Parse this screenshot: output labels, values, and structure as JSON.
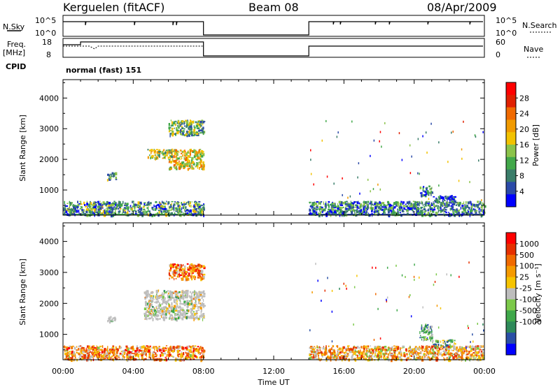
{
  "header": {
    "station": "Kerguelen (fitACF)",
    "beam": "Beam 08",
    "date": "08/Apr/2009"
  },
  "top_panels": {
    "nsky_label": "N.Sky",
    "nsky_ticks": [
      "10^5",
      "10^0"
    ],
    "nsearch_label": "N.Search",
    "nsearch_ticks": [
      "10^5",
      "10^0"
    ],
    "freq_label": "Freq.",
    "freq_unit": "[MHz]",
    "freq_ticks": [
      "18",
      "8"
    ],
    "nave_label": "Nave",
    "nave_ticks": [
      "60",
      "0"
    ],
    "cpid_label": "CPID",
    "cpid_value": "normal (fast) 151"
  },
  "colors": {
    "power_scale": [
      "#0000ff",
      "#2b4aa8",
      "#3a7d6a",
      "#42a84a",
      "#8bc34a",
      "#f2c200",
      "#f09a00",
      "#f06a00",
      "#e02000",
      "#ff0000"
    ],
    "velocity_scale": [
      "#0000ff",
      "#2a4fa6",
      "#2e8a5a",
      "#3fa84a",
      "#7cc94a",
      "#bdbdbd",
      "#f6c400",
      "#f59a00",
      "#f06a00",
      "#e63000",
      "#ff0000"
    ],
    "ground_scatter": "#bdbdbd"
  },
  "chart_data": [
    {
      "type": "heatmap",
      "name": "power",
      "ylabel": "Slant Range [km]",
      "yticks": [
        "1000",
        "2000",
        "3000",
        "4000"
      ],
      "ylim": [
        180,
        4600
      ],
      "xlim": [
        0,
        24
      ],
      "colorbar_label": "Power [dB]",
      "colorbar_ticks": [
        "4",
        "8",
        "12",
        "16",
        "20",
        "24",
        "28"
      ],
      "colorbar_range": [
        0,
        32
      ],
      "gaps": [
        [
          8,
          14
        ]
      ],
      "regions": [
        {
          "x0": 6.0,
          "x1": 8.0,
          "y0": 1700,
          "y1": 2350,
          "level": 0.55
        },
        {
          "x0": 4.8,
          "x1": 6.2,
          "y0": 2050,
          "y1": 2350,
          "level": 0.45
        },
        {
          "x0": 6.0,
          "x1": 8.0,
          "y0": 2800,
          "y1": 3300,
          "level": 0.35
        },
        {
          "x0": 2.5,
          "x1": 3.0,
          "y0": 1350,
          "y1": 1600,
          "level": 0.3
        },
        {
          "x0": 20.3,
          "x1": 21.0,
          "y0": 850,
          "y1": 1150,
          "level": 0.25
        },
        {
          "x0": 21.0,
          "x1": 22.3,
          "y0": 600,
          "y1": 850,
          "level": 0.2
        },
        {
          "x0": 0.0,
          "x1": 8.0,
          "y0": 200,
          "y1": 650,
          "level": 0.3
        },
        {
          "x0": 14.0,
          "x1": 24.0,
          "y0": 200,
          "y1": 650,
          "level": 0.25
        }
      ]
    },
    {
      "type": "heatmap",
      "name": "velocity",
      "ylabel": "Slant Range [km]",
      "yticks": [
        "1000",
        "2000",
        "3000",
        "4000"
      ],
      "ylim": [
        180,
        4600
      ],
      "xlim": [
        0,
        24
      ],
      "xlabel": "Time UT",
      "xticks": [
        "00:00",
        "04:00",
        "08:00",
        "12:00",
        "16:00",
        "20:00",
        "00:00"
      ],
      "colorbar_label": "Velocity [m s⁻¹]",
      "colorbar_ticks": [
        "1000",
        "500",
        "100",
        "25",
        "-25",
        "-100",
        "-500",
        "-1000"
      ],
      "gaps": [
        [
          8,
          14
        ]
      ],
      "regions": [
        {
          "x0": 4.6,
          "x1": 8.0,
          "y0": 1500,
          "y1": 2450,
          "level": 0.5
        },
        {
          "x0": 6.0,
          "x1": 8.0,
          "y0": 2800,
          "y1": 3300,
          "level": 0.75
        },
        {
          "x0": 2.5,
          "x1": 3.0,
          "y0": 1400,
          "y1": 1600,
          "level": 0.5
        },
        {
          "x0": 20.3,
          "x1": 21.0,
          "y0": 850,
          "y1": 1350,
          "level": 0.3
        },
        {
          "x0": 21.0,
          "x1": 22.3,
          "y0": 600,
          "y1": 850,
          "level": 0.35
        },
        {
          "x0": 0.0,
          "x1": 8.0,
          "y0": 200,
          "y1": 650,
          "level": 0.7
        },
        {
          "x0": 14.0,
          "x1": 24.0,
          "y0": 200,
          "y1": 650,
          "level": 0.65
        }
      ]
    }
  ]
}
